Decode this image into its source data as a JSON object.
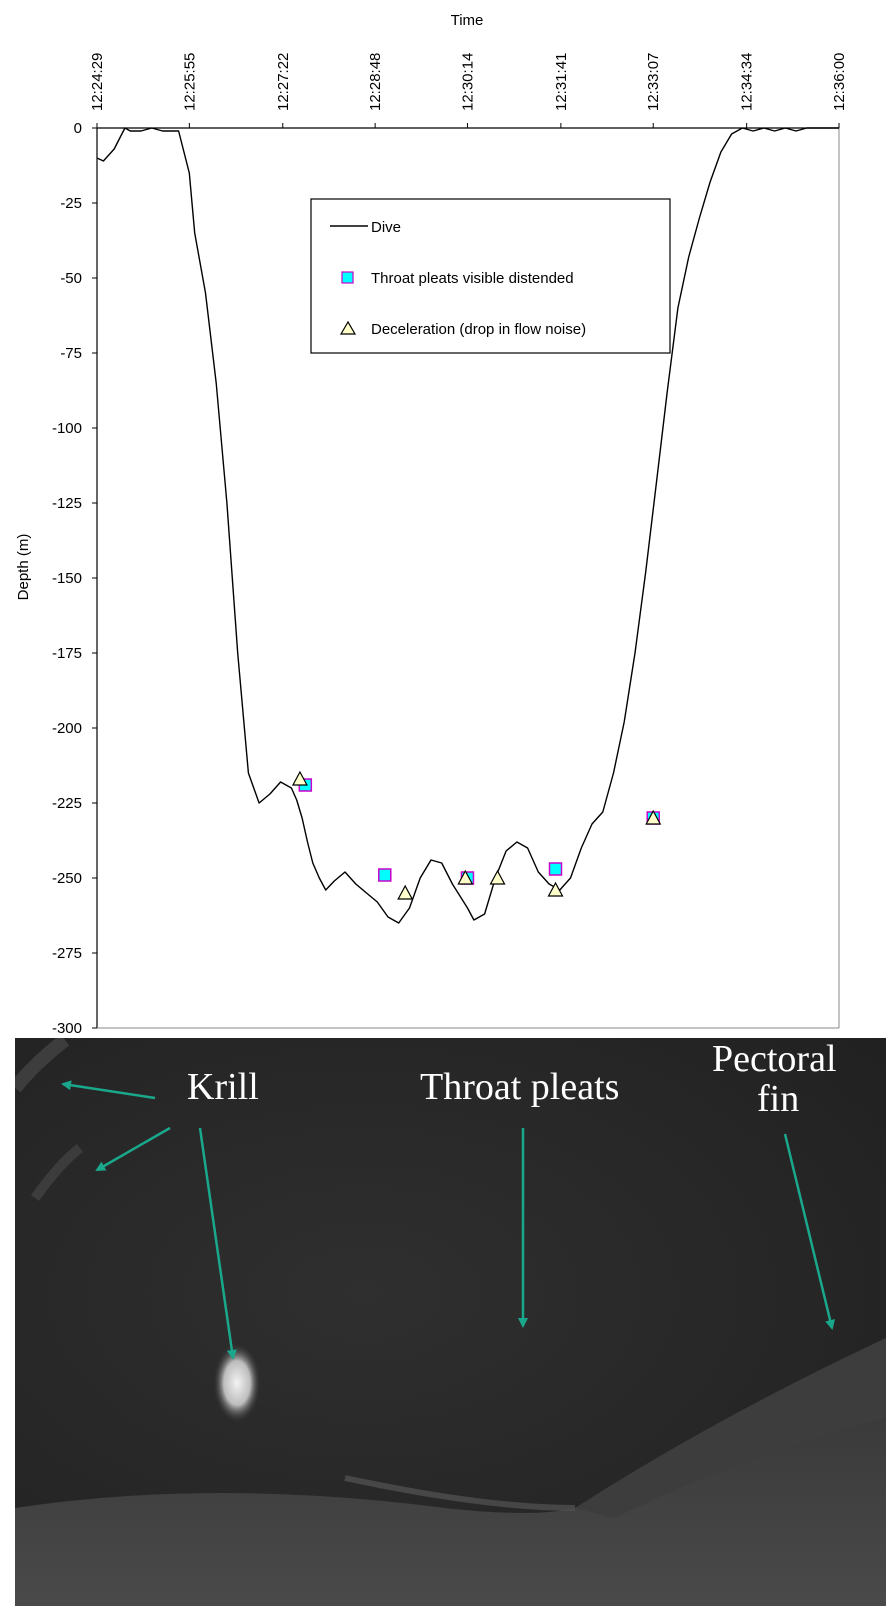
{
  "chart_data": {
    "type": "line",
    "xlabel": "Time",
    "ylabel": "Depth (m)",
    "x_ticks": [
      "12:24:29",
      "12:25:55",
      "12:27:22",
      "12:28:48",
      "12:30:14",
      "12:31:41",
      "12:33:07",
      "12:34:34",
      "12:36:00"
    ],
    "xlim": [
      "12:24:29",
      "12:36:00"
    ],
    "y_ticks": [
      0,
      -25,
      -50,
      -75,
      -100,
      -125,
      -150,
      -175,
      -200,
      -225,
      -250,
      -275,
      -300
    ],
    "ylim": [
      -300,
      0
    ],
    "grid": false,
    "legend_position": "top-center",
    "series": [
      {
        "name": "Dive",
        "kind": "line",
        "color": "#000000",
        "x": [
          "12:24:29",
          "12:24:35",
          "12:24:45",
          "12:24:55",
          "12:25:00",
          "12:25:10",
          "12:25:20",
          "12:25:30",
          "12:25:45",
          "12:25:55",
          "12:26:00",
          "12:26:10",
          "12:26:20",
          "12:26:30",
          "12:26:40",
          "12:26:50",
          "12:27:00",
          "12:27:10",
          "12:27:20",
          "12:27:30",
          "12:27:35",
          "12:27:40",
          "12:27:45",
          "12:27:50",
          "12:27:56",
          "12:28:02",
          "12:28:10",
          "12:28:20",
          "12:28:30",
          "12:28:40",
          "12:28:50",
          "12:29:00",
          "12:29:10",
          "12:29:20",
          "12:29:30",
          "12:29:40",
          "12:29:50",
          "12:30:00",
          "12:30:14",
          "12:30:20",
          "12:30:30",
          "12:30:40",
          "12:30:50",
          "12:31:00",
          "12:31:10",
          "12:31:20",
          "12:31:30",
          "12:31:40",
          "12:31:50",
          "12:32:00",
          "12:32:10",
          "12:32:20",
          "12:32:30",
          "12:32:40",
          "12:32:50",
          "12:33:00",
          "12:33:10",
          "12:33:20",
          "12:33:30",
          "12:33:40",
          "12:33:50",
          "12:34:00",
          "12:34:10",
          "12:34:20",
          "12:34:30",
          "12:34:40",
          "12:34:50",
          "12:35:00",
          "12:35:10",
          "12:35:20",
          "12:35:30",
          "12:35:40",
          "12:35:50",
          "12:36:00"
        ],
        "values": [
          -10,
          -11,
          -7,
          0,
          -1,
          -1,
          0,
          -1,
          -1,
          -15,
          -35,
          -55,
          -85,
          -125,
          -175,
          -215,
          -225,
          -222,
          -218,
          -220,
          -224,
          -230,
          -238,
          -245,
          -250,
          -254,
          -251,
          -248,
          -252,
          -255,
          -258,
          -263,
          -265,
          -260,
          -250,
          -244,
          -245,
          -252,
          -260,
          -264,
          -262,
          -250,
          -241,
          -238,
          -240,
          -248,
          -252,
          -254,
          -250,
          -240,
          -232,
          -228,
          -215,
          -198,
          -175,
          -148,
          -118,
          -88,
          -60,
          -43,
          -30,
          -18,
          -8,
          -2,
          0,
          -1,
          0,
          -1,
          0,
          -1,
          0,
          0,
          0,
          0
        ]
      },
      {
        "name": "Throat pleats visible distended",
        "kind": "marker",
        "marker": "square",
        "color": "#00ffff",
        "edge_color": "#cc00cc",
        "x": [
          "12:27:43",
          "12:28:57",
          "12:30:14",
          "12:31:36",
          "12:33:07"
        ],
        "values": [
          -219,
          -249,
          -250,
          -247,
          -230
        ]
      },
      {
        "name": "Deceleration (drop in flow noise)",
        "kind": "marker",
        "marker": "triangle",
        "color": "#ffffcc",
        "edge_color": "#000000",
        "x": [
          "12:27:38",
          "12:29:16",
          "12:30:12",
          "12:30:42",
          "12:31:36",
          "12:33:07"
        ],
        "values": [
          -217,
          -255,
          -250,
          -250,
          -254,
          -230
        ]
      }
    ]
  },
  "photo": {
    "labels": {
      "krill": "Krill",
      "throat_pleats": "Throat pleats",
      "pectoral_fin_line1": "Pectoral",
      "pectoral_fin_line2": "fin"
    },
    "arrow_color": "#1aa88c"
  }
}
